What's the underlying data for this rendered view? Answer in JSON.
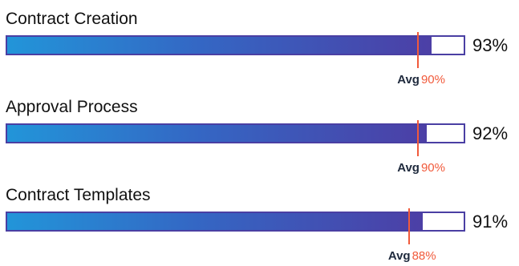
{
  "chart_data": {
    "type": "bar",
    "orientation": "horizontal",
    "title": "",
    "xlabel": "",
    "ylabel": "",
    "xlim": [
      0,
      100
    ],
    "grid": false,
    "legend": "none",
    "avg_label": "Avg",
    "categories": [
      "Contract Creation",
      "Approval Process",
      "Contract Templates"
    ],
    "values": [
      93,
      92,
      91
    ],
    "value_labels": [
      "93%",
      "92%",
      "91%"
    ],
    "averages": [
      90,
      90,
      88
    ],
    "average_labels": [
      "90%",
      "90%",
      "88%"
    ],
    "colors": {
      "bar_gradient_start": "#2295d9",
      "bar_gradient_end": "#4c3fa6",
      "bar_border": "#4a3fa3",
      "average_marker": "#f15a3b"
    }
  }
}
